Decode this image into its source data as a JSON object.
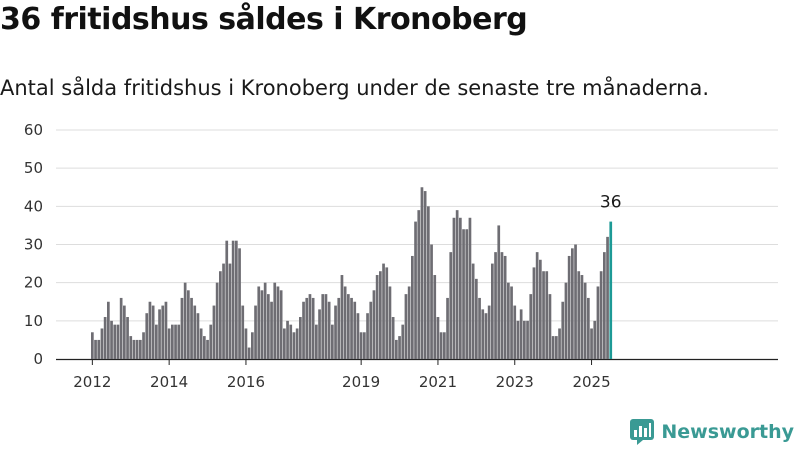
{
  "title": "36 fritidshus såldes i Kronoberg",
  "subtitle": "Antal sålda fritidshus i Kronoberg under de senaste tre månaderna.",
  "brand": "Newsworthy",
  "colors": {
    "bar": "#6e6d73",
    "highlight": "#1d9a96",
    "grid": "#dddddd",
    "brand": "#3a9a94"
  },
  "chart_data": {
    "type": "bar",
    "ylim": [
      0,
      60
    ],
    "yticks": [
      0,
      10,
      20,
      30,
      40,
      50,
      60
    ],
    "xtick_labels": [
      {
        "label": "2012",
        "at_index": 0
      },
      {
        "label": "2014",
        "at_index": 24
      },
      {
        "label": "2016",
        "at_index": 48
      },
      {
        "label": "2019",
        "at_index": 84
      },
      {
        "label": "2021",
        "at_index": 108
      },
      {
        "label": "2023",
        "at_index": 132
      },
      {
        "label": "2025",
        "at_index": 156
      }
    ],
    "grid": true,
    "highlight_label": "36",
    "values": [
      7,
      5,
      5,
      8,
      11,
      15,
      10,
      9,
      9,
      16,
      14,
      11,
      6,
      5,
      5,
      5,
      7,
      12,
      15,
      14,
      9,
      13,
      14,
      15,
      8,
      9,
      9,
      9,
      16,
      20,
      18,
      16,
      14,
      12,
      8,
      6,
      5,
      9,
      14,
      20,
      23,
      25,
      31,
      25,
      31,
      31,
      29,
      14,
      8,
      3,
      7,
      14,
      19,
      18,
      20,
      17,
      15,
      20,
      19,
      18,
      8,
      10,
      9,
      7,
      8,
      11,
      15,
      16,
      17,
      16,
      9,
      13,
      17,
      17,
      15,
      9,
      14,
      16,
      22,
      19,
      17,
      16,
      15,
      12,
      7,
      7,
      12,
      15,
      18,
      22,
      23,
      25,
      24,
      19,
      11,
      5,
      6,
      9,
      17,
      19,
      27,
      36,
      39,
      45,
      44,
      40,
      30,
      22,
      11,
      7,
      7,
      16,
      28,
      37,
      39,
      37,
      34,
      34,
      37,
      25,
      21,
      16,
      13,
      12,
      14,
      25,
      28,
      35,
      28,
      27,
      20,
      19,
      14,
      10,
      13,
      10,
      10,
      17,
      24,
      28,
      26,
      23,
      23,
      17,
      6,
      6,
      8,
      15,
      20,
      27,
      29,
      30,
      23,
      22,
      20,
      16,
      8,
      10,
      19,
      23,
      28,
      32,
      36
    ]
  }
}
